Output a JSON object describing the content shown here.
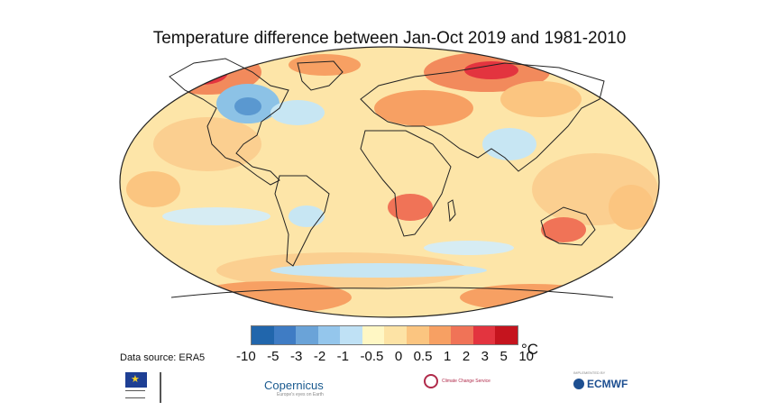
{
  "title": "Temperature difference between Jan-Oct 2019 and 1981-2010",
  "colorbar": {
    "colors": [
      "#2166ac",
      "#3f7cc4",
      "#6aa3d8",
      "#94c6ec",
      "#bfe1f5",
      "#fff7c4",
      "#fde3a5",
      "#fbc580",
      "#f7a063",
      "#f07357",
      "#e3343f",
      "#c5141e"
    ],
    "labels": [
      "-10",
      "-5",
      "-3",
      "-2",
      "-1",
      "-0.5",
      "0",
      "0.5",
      "1",
      "2",
      "3",
      "5",
      "10"
    ],
    "unit": "°C"
  },
  "data_source": "Data source: ERA5",
  "logos": {
    "copernicus": "Copernicus",
    "copernicus_sub": "Europe's eyes on Earth",
    "c3s": "Climate Change Service",
    "ecmwf": "ECMWF",
    "ecmwf_sub": "IMPLEMENTED BY"
  },
  "map": {
    "ocean_base": "#fdebb0",
    "land_base": "#fbd08f",
    "warm_strong": "#e73845",
    "warm_mid": "#f7a063",
    "cool": "#c7e6f3",
    "cool_mid": "#8cc2e6"
  }
}
